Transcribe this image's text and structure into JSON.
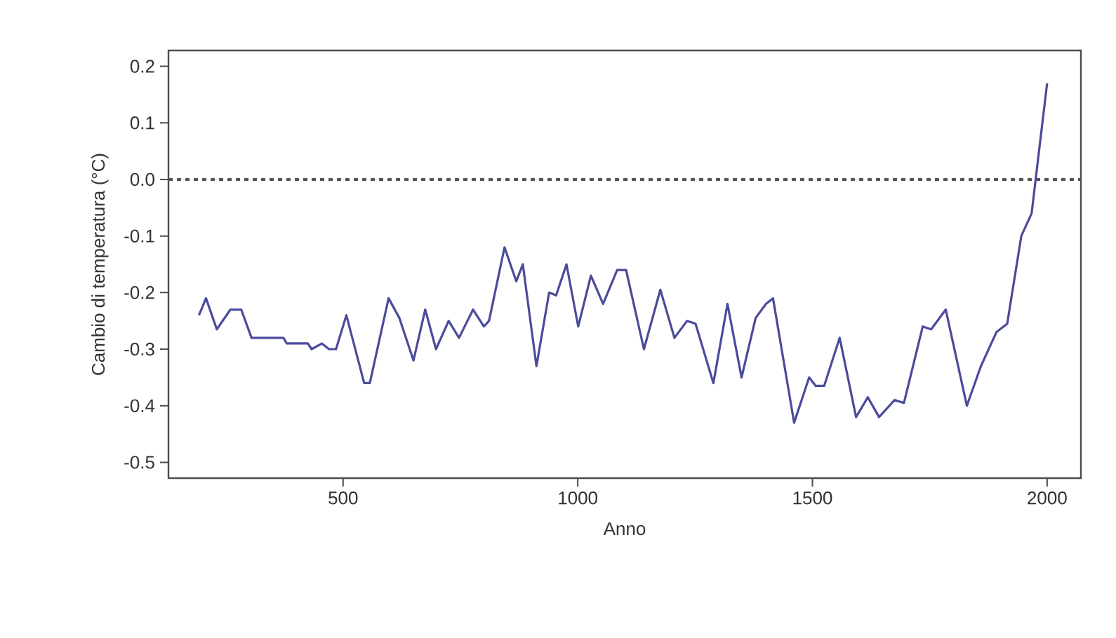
{
  "chart_data": {
    "type": "line",
    "xlabel": "Anno",
    "ylabel": "Cambio di temperatura (°C)",
    "x": [
      193,
      208,
      231,
      260,
      283,
      305,
      373,
      380,
      425,
      433,
      455,
      470,
      485,
      507,
      545,
      557,
      597,
      620,
      650,
      675,
      698,
      725,
      747,
      777,
      800,
      811,
      844,
      869,
      883,
      912,
      939,
      954,
      976,
      1001,
      1028,
      1054,
      1084,
      1103,
      1141,
      1176,
      1206,
      1233,
      1251,
      1289,
      1319,
      1349,
      1379,
      1401,
      1416,
      1461,
      1493,
      1507,
      1525,
      1558,
      1593,
      1618,
      1642,
      1675,
      1695,
      1735,
      1753,
      1784,
      1829,
      1859,
      1892,
      1915,
      1945,
      1967,
      2000
    ],
    "values": [
      -0.24,
      -0.21,
      -0.265,
      -0.23,
      -0.23,
      -0.28,
      -0.28,
      -0.29,
      -0.29,
      -0.3,
      -0.29,
      -0.3,
      -0.3,
      -0.24,
      -0.36,
      -0.36,
      -0.21,
      -0.245,
      -0.32,
      -0.23,
      -0.3,
      -0.25,
      -0.28,
      -0.23,
      -0.26,
      -0.25,
      -0.12,
      -0.18,
      -0.15,
      -0.33,
      -0.2,
      -0.205,
      -0.15,
      -0.26,
      -0.17,
      -0.22,
      -0.16,
      -0.16,
      -0.3,
      -0.195,
      -0.28,
      -0.25,
      -0.255,
      -0.36,
      -0.22,
      -0.35,
      -0.245,
      -0.22,
      -0.21,
      -0.43,
      -0.35,
      -0.365,
      -0.365,
      -0.28,
      -0.42,
      -0.385,
      -0.42,
      -0.39,
      -0.395,
      -0.26,
      -0.265,
      -0.23,
      -0.4,
      -0.33,
      -0.27,
      -0.255,
      -0.1,
      -0.06,
      0.17
    ],
    "color": "#4b4b9b",
    "line_style": "solid",
    "marker": "none",
    "xlim": [
      128,
      2072
    ],
    "ylim": [
      -0.528,
      0.228
    ],
    "xticks": [
      500,
      1000,
      1500,
      2000
    ],
    "yticks": [
      {
        "value": -0.5,
        "label": "-0.5"
      },
      {
        "value": -0.4,
        "label": "-0.4"
      },
      {
        "value": -0.3,
        "label": "-0.3"
      },
      {
        "value": -0.2,
        "label": "-0.2"
      },
      {
        "value": -0.1,
        "label": "-0.1"
      },
      {
        "value": 0.0,
        "label": "0.0"
      },
      {
        "value": 0.1,
        "label": "0.1"
      },
      {
        "value": 0.2,
        "label": "0.2"
      }
    ],
    "ref_lines": [
      {
        "axis": "y",
        "value": 0,
        "color": "#555555",
        "line_style": "dotted"
      }
    ]
  }
}
